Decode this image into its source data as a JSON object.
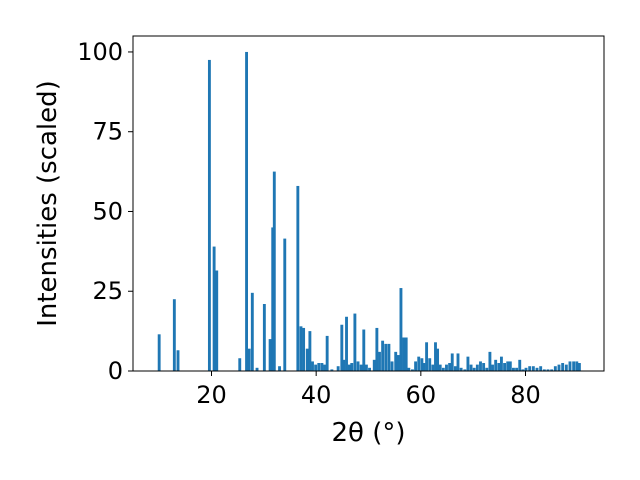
{
  "chart_data": {
    "type": "bar",
    "xlabel": "2θ (°)",
    "ylabel": "Intensities (scaled)",
    "xlim": [
      5,
      95
    ],
    "ylim": [
      0,
      105
    ],
    "x_ticks": [
      20,
      40,
      60,
      80
    ],
    "y_ticks": [
      0,
      25,
      50,
      75,
      100
    ],
    "bar_color": "#1f77b4",
    "grid": false,
    "series": [
      {
        "x": [
          10.0,
          12.9,
          13.6,
          19.6,
          20.5,
          21.0,
          25.4,
          26.7,
          27.2,
          27.8,
          28.7,
          30.1,
          31.2,
          31.7,
          32.0,
          33.0,
          34.0,
          36.5,
          37.1,
          37.6,
          38.3,
          38.8,
          39.3,
          39.9,
          40.5,
          41.1,
          41.6,
          42.1,
          43.0,
          44.2,
          44.9,
          45.3,
          45.8,
          46.3,
          46.8,
          47.4,
          48.0,
          48.6,
          49.1,
          49.6,
          50.2,
          51.1,
          51.6,
          52.1,
          52.7,
          53.3,
          53.9,
          54.5,
          55.2,
          55.7,
          56.2,
          56.7,
          57.2,
          57.7,
          58.4,
          59.0,
          59.6,
          60.2,
          60.6,
          61.1,
          61.7,
          62.3,
          62.8,
          63.2,
          63.7,
          64.3,
          64.9,
          65.5,
          66.0,
          66.6,
          67.1,
          67.7,
          68.4,
          69.0,
          69.6,
          70.2,
          70.8,
          71.4,
          72.0,
          72.6,
          73.2,
          73.7,
          74.3,
          74.9,
          75.4,
          76.0,
          76.6,
          77.1,
          77.7,
          78.3,
          78.9,
          79.5,
          80.1,
          80.8,
          81.5,
          82.2,
          82.9,
          83.6,
          84.3,
          85.0,
          85.7,
          86.4,
          87.1,
          87.8,
          88.5,
          89.2,
          89.8,
          90.3
        ],
        "values": [
          11.5,
          22.5,
          6.5,
          97.5,
          39.0,
          31.5,
          4.0,
          100.0,
          7.0,
          24.5,
          1.0,
          21.0,
          10.0,
          45.0,
          62.5,
          1.5,
          41.5,
          58.0,
          14.0,
          13.5,
          7.0,
          12.5,
          3.0,
          2.0,
          2.5,
          2.5,
          2.0,
          11.0,
          0.5,
          1.5,
          14.5,
          3.5,
          17.0,
          2.0,
          2.5,
          18.0,
          3.0,
          2.0,
          13.0,
          2.0,
          1.0,
          3.5,
          13.5,
          6.0,
          9.5,
          8.5,
          8.5,
          3.0,
          6.0,
          5.0,
          26.0,
          10.5,
          10.5,
          1.0,
          0.5,
          3.0,
          4.5,
          4.0,
          2.5,
          9.0,
          4.0,
          2.0,
          9.0,
          7.0,
          2.0,
          1.0,
          2.0,
          2.5,
          5.5,
          1.5,
          5.5,
          1.0,
          0.5,
          4.5,
          2.0,
          1.0,
          2.0,
          3.0,
          2.5,
          1.0,
          6.0,
          2.0,
          3.5,
          2.5,
          4.5,
          2.5,
          3.0,
          3.0,
          1.0,
          1.0,
          3.5,
          0.5,
          1.0,
          1.5,
          1.5,
          1.0,
          1.5,
          0.5,
          0.5,
          0.5,
          1.5,
          2.0,
          2.5,
          2.0,
          3.0,
          3.0,
          3.0,
          2.5
        ]
      }
    ]
  }
}
